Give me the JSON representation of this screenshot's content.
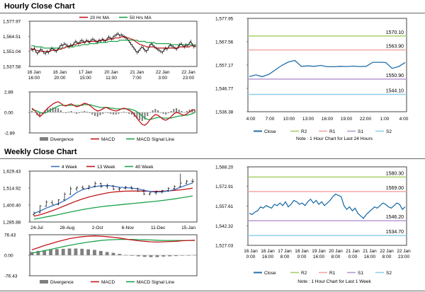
{
  "sections": {
    "hourly_title": "Hourly Close Chart",
    "weekly_title": "Weekly Close Chart"
  },
  "colors": {
    "close": "#1f6fa8",
    "ma20": "#c0171b",
    "ma50": "#1aa34a",
    "macd": "#c0171b",
    "macd_signal": "#1aa34a",
    "divergence": "#808080",
    "r2": "#a9cf6a",
    "r1": "#f2a6a6",
    "s1": "#b79ad2",
    "s2": "#8ed0ea",
    "ohlc": "#000000",
    "ma4w": "#3b6fc0",
    "ma13w": "#c0171b",
    "ma40w": "#1aa34a"
  },
  "chart_data": [
    {
      "id": "hourly-price-ma",
      "type": "line",
      "legend": [
        "20 Hr MA",
        "50 Hrs MA"
      ],
      "yticks": [
        "1,577.97",
        "1,564.51",
        "1,551.04",
        "1,537.58"
      ],
      "ylim": [
        1537.58,
        1577.97
      ],
      "xticks": [
        "16 Jan\n16:00",
        "16 Jan\n20:00",
        "17 Jan\n15:00",
        "20 Jan\n11:00",
        "21 Jan\n7:00",
        "22 Jan\n3:00",
        "22 Jan\n23:00"
      ],
      "close": [
        1553,
        1552,
        1554,
        1551,
        1549,
        1551,
        1553,
        1552,
        1550,
        1549,
        1551,
        1550,
        1552,
        1554,
        1553,
        1552,
        1551,
        1553,
        1555,
        1557,
        1556,
        1558,
        1557,
        1556,
        1555,
        1557,
        1556,
        1558,
        1560,
        1559,
        1558,
        1560,
        1561,
        1560,
        1559,
        1561,
        1560,
        1559,
        1561,
        1562,
        1561,
        1560,
        1559,
        1561,
        1560,
        1562,
        1561,
        1560,
        1562,
        1564,
        1563,
        1562,
        1564,
        1565,
        1566,
        1567,
        1565,
        1566,
        1565,
        1564,
        1563,
        1562,
        1560,
        1558,
        1556,
        1554,
        1552,
        1550,
        1551,
        1553,
        1555,
        1554,
        1552,
        1551,
        1553,
        1556,
        1558,
        1557,
        1555,
        1554,
        1553,
        1552,
        1551,
        1550,
        1552,
        1554,
        1553,
        1555,
        1557,
        1556,
        1555,
        1554,
        1553,
        1555,
        1557,
        1558,
        1556,
        1555,
        1557,
        1556,
        1558,
        1560,
        1557,
        1555,
        1556
      ],
      "ma20": [
        1554,
        1553,
        1553,
        1552,
        1552,
        1551,
        1551,
        1551,
        1551,
        1551,
        1551,
        1551,
        1551,
        1552,
        1552,
        1552,
        1552,
        1553,
        1553,
        1553,
        1554,
        1554,
        1555,
        1555,
        1556,
        1556,
        1556,
        1557,
        1557,
        1558,
        1558,
        1558,
        1559,
        1559,
        1559,
        1560,
        1560,
        1560,
        1560,
        1560,
        1560,
        1560,
        1560,
        1561,
        1561,
        1561,
        1561,
        1561,
        1561,
        1562,
        1562,
        1562,
        1562,
        1563,
        1563,
        1563,
        1563,
        1564,
        1564,
        1564,
        1564,
        1563,
        1563,
        1562,
        1562,
        1561,
        1560,
        1559,
        1558,
        1557,
        1557,
        1556,
        1556,
        1555,
        1555,
        1555,
        1555,
        1555,
        1555,
        1554,
        1554,
        1554,
        1554,
        1554,
        1554,
        1554,
        1554,
        1554,
        1554,
        1554,
        1554,
        1554,
        1554,
        1554,
        1555,
        1555,
        1555,
        1555,
        1555,
        1555,
        1555,
        1556,
        1556,
        1556,
        1556
      ],
      "ma50": [
        1556,
        1556,
        1556,
        1555,
        1555,
        1555,
        1555,
        1555,
        1554,
        1554,
        1554,
        1554,
        1554,
        1554,
        1554,
        1554,
        1554,
        1554,
        1554,
        1554,
        1554,
        1554,
        1555,
        1555,
        1555,
        1555,
        1555,
        1555,
        1556,
        1556,
        1556,
        1556,
        1557,
        1557,
        1557,
        1557,
        1557,
        1558,
        1558,
        1558,
        1558,
        1558,
        1558,
        1559,
        1559,
        1559,
        1559,
        1559,
        1559,
        1560,
        1560,
        1560,
        1560,
        1560,
        1560,
        1560,
        1561,
        1561,
        1561,
        1561,
        1561,
        1561,
        1561,
        1561,
        1561,
        1561,
        1561,
        1561,
        1560,
        1560,
        1560,
        1560,
        1560,
        1559,
        1559,
        1559,
        1559,
        1559,
        1559,
        1558,
        1558,
        1558,
        1558,
        1558,
        1558,
        1558,
        1558,
        1558,
        1557,
        1557,
        1557,
        1557,
        1557,
        1557,
        1557,
        1557,
        1557,
        1557,
        1557,
        1557,
        1557,
        1557,
        1557,
        1557,
        1557
      ]
    },
    {
      "id": "hourly-macd",
      "type": "line",
      "legend": [
        "Divergence",
        "MACD",
        "MACD Signal Line"
      ],
      "yticks": [
        "2.89",
        "0.00",
        "-2.89"
      ],
      "ylim": [
        -2.89,
        2.89
      ],
      "macd": [
        0.6,
        0.3,
        -0.2,
        -0.6,
        -0.3,
        0.2,
        0.6,
        0.9,
        1.2,
        1.4,
        1.5,
        1.3,
        1.0,
        0.9,
        1.1,
        1.2,
        1.0,
        0.8,
        0.9,
        1.1,
        1.3,
        1.2,
        1.0,
        0.7,
        0.4,
        0.2,
        0.3,
        0.5,
        0.7,
        0.6,
        0.4,
        0.3,
        0.2,
        0.3,
        0.5,
        0.6,
        0.5,
        0.3,
        0.1,
        -0.3,
        -0.8,
        -1.3,
        -1.7,
        -1.8,
        -1.5,
        -1.0,
        -0.6,
        -0.3,
        -0.4,
        -0.7,
        -1.0,
        -1.1,
        -0.9,
        -0.6,
        -0.2,
        0.0,
        -0.1,
        -0.3,
        -0.4,
        -0.2,
        0.1,
        0.3,
        0.4
      ],
      "signal": [
        0.4,
        0.3,
        0.2,
        0.0,
        -0.1,
        -0.1,
        0.1,
        0.3,
        0.5,
        0.7,
        0.9,
        1.0,
        1.0,
        1.0,
        1.0,
        1.0,
        1.0,
        1.0,
        1.0,
        1.0,
        1.1,
        1.1,
        1.1,
        1.0,
        0.9,
        0.8,
        0.7,
        0.7,
        0.7,
        0.7,
        0.6,
        0.6,
        0.5,
        0.5,
        0.5,
        0.5,
        0.5,
        0.5,
        0.4,
        0.3,
        0.1,
        -0.2,
        -0.5,
        -0.8,
        -1.0,
        -1.0,
        -0.9,
        -0.8,
        -0.7,
        -0.7,
        -0.8,
        -0.8,
        -0.8,
        -0.8,
        -0.7,
        -0.6,
        -0.5,
        -0.5,
        -0.4,
        -0.4,
        -0.3,
        -0.2,
        0.0
      ],
      "divergence": [
        0.2,
        0.0,
        -0.4,
        -0.6,
        -0.2,
        0.3,
        0.5,
        0.6,
        0.7,
        0.7,
        0.6,
        0.3,
        0.0,
        -0.1,
        0.1,
        0.2,
        0.0,
        -0.2,
        -0.1,
        0.1,
        0.2,
        0.1,
        -0.1,
        -0.3,
        -0.5,
        -0.6,
        -0.4,
        -0.2,
        0.0,
        -0.1,
        -0.2,
        -0.3,
        -0.3,
        -0.2,
        0.0,
        0.1,
        0.0,
        -0.2,
        -0.3,
        -0.6,
        -0.9,
        -1.1,
        -1.2,
        -1.0,
        -0.5,
        0.0,
        0.3,
        0.5,
        0.3,
        0.0,
        -0.2,
        -0.3,
        -0.1,
        0.2,
        0.5,
        0.6,
        0.4,
        0.2,
        0.0,
        0.2,
        0.4,
        0.5,
        0.4
      ]
    },
    {
      "id": "hourly-close-pivots",
      "type": "line",
      "yticks": [
        "1,577.95",
        "1,567.56",
        "1,557.17",
        "1,546.77",
        "1,536.38"
      ],
      "ylim": [
        1536.38,
        1577.95
      ],
      "xticks": [
        "4:00",
        "7:00",
        "10:00",
        "13:00",
        "16:00",
        "19:00",
        "22:00",
        "1:00",
        "4:00"
      ],
      "close": [
        1552.0,
        1552.8,
        1552.0,
        1553.0,
        1555.0,
        1557.0,
        1558.5,
        1559.2,
        1556.6,
        1556.8,
        1556.6,
        1557.0,
        1556.4,
        1556.4,
        1556.6,
        1556.5,
        1556.7,
        1556.5,
        1556.6,
        1558.4,
        1558.4,
        1558.3,
        1555.7,
        1556.5,
        1558.3
      ],
      "levels": [
        {
          "name": "R2",
          "value": 1570.1,
          "label": "1570.10"
        },
        {
          "name": "R1",
          "value": 1563.9,
          "label": "1563.90"
        },
        {
          "name": "S1",
          "value": 1550.9,
          "label": "1550.90"
        },
        {
          "name": "S2",
          "value": 1544.1,
          "label": "1544.10"
        }
      ],
      "legend": [
        "Close",
        "R2",
        "R1",
        "S1",
        "S2"
      ],
      "note": "Note : 1 Hour Chart for Last 24 Hours"
    },
    {
      "id": "weekly-price-ma",
      "type": "line",
      "legend": [
        "4 Week",
        "13 Week",
        "40 Week"
      ],
      "yticks": [
        "1,629.43",
        "1,514.92",
        "1,400.40",
        "1,285.88"
      ],
      "ylim": [
        1285.88,
        1629.43
      ],
      "xticks": [
        "24-Jul",
        "28-Aug",
        "2-Oct",
        "6-Nov",
        "11-Dec",
        "15-Jan"
      ],
      "ohlc": [
        [
          1335,
          1355,
          1325,
          1345
        ],
        [
          1348,
          1400,
          1345,
          1395
        ],
        [
          1392,
          1432,
          1388,
          1420
        ],
        [
          1418,
          1432,
          1402,
          1405
        ],
        [
          1405,
          1440,
          1398,
          1435
        ],
        [
          1435,
          1485,
          1430,
          1475
        ],
        [
          1475,
          1525,
          1470,
          1510
        ],
        [
          1510,
          1525,
          1495,
          1520
        ],
        [
          1520,
          1532,
          1505,
          1512
        ],
        [
          1512,
          1535,
          1505,
          1528
        ],
        [
          1528,
          1560,
          1520,
          1545
        ],
        [
          1545,
          1552,
          1515,
          1525
        ],
        [
          1525,
          1545,
          1510,
          1530
        ],
        [
          1530,
          1535,
          1500,
          1508
        ],
        [
          1508,
          1522,
          1495,
          1512
        ],
        [
          1512,
          1530,
          1505,
          1520
        ],
        [
          1520,
          1528,
          1505,
          1510
        ],
        [
          1510,
          1518,
          1490,
          1495
        ],
        [
          1495,
          1508,
          1468,
          1475
        ],
        [
          1475,
          1490,
          1465,
          1482
        ],
        [
          1482,
          1498,
          1470,
          1490
        ],
        [
          1490,
          1503,
          1478,
          1498
        ],
        [
          1498,
          1520,
          1490,
          1512
        ],
        [
          1512,
          1535,
          1505,
          1525
        ],
        [
          1525,
          1612,
          1520,
          1548
        ],
        [
          1548,
          1570,
          1540,
          1562
        ],
        [
          1562,
          1578,
          1548,
          1560
        ]
      ],
      "ma4": [
        1345,
        1360,
        1380,
        1395,
        1410,
        1430,
        1455,
        1485,
        1505,
        1515,
        1525,
        1530,
        1532,
        1528,
        1520,
        1518,
        1515,
        1510,
        1500,
        1492,
        1488,
        1490,
        1495,
        1505,
        1520,
        1535,
        1550
      ],
      "ma13": [
        1325,
        1335,
        1348,
        1362,
        1378,
        1395,
        1412,
        1428,
        1442,
        1455,
        1465,
        1474,
        1482,
        1488,
        1492,
        1494,
        1495,
        1495,
        1494,
        1493,
        1493,
        1494,
        1496,
        1499,
        1503,
        1508,
        1514
      ],
      "ma40": [
        1305,
        1312,
        1320,
        1328,
        1336,
        1345,
        1354,
        1362,
        1370,
        1377,
        1383,
        1389,
        1394,
        1398,
        1402,
        1406,
        1410,
        1414,
        1418,
        1422,
        1426,
        1431,
        1436,
        1442,
        1448,
        1455,
        1462
      ]
    },
    {
      "id": "weekly-macd",
      "type": "line",
      "legend": [
        "Divergence",
        "MACD",
        "MACD Signal Line"
      ],
      "yticks": [
        "76.43",
        "0.00",
        "-76.43"
      ],
      "ylim": [
        -76.43,
        76.43
      ],
      "macd": [
        20,
        28,
        36,
        43,
        50,
        56,
        62,
        66,
        69,
        71,
        72,
        71,
        69,
        67,
        64,
        60,
        57,
        54,
        52,
        50,
        49,
        50,
        51,
        52,
        54,
        55,
        56
      ],
      "signal": [
        8,
        12,
        17,
        22,
        27,
        32,
        37,
        41,
        45,
        49,
        52,
        55,
        57,
        58,
        59,
        59,
        59,
        58,
        58,
        57,
        56,
        55,
        55,
        55,
        55,
        55,
        55
      ],
      "divergence": [
        12,
        16,
        19,
        21,
        23,
        24,
        25,
        25,
        24,
        22,
        20,
        16,
        12,
        9,
        5,
        1,
        -2,
        -4,
        -6,
        -7,
        -7,
        -5,
        -4,
        -3,
        -1,
        0,
        1
      ]
    },
    {
      "id": "weekly-close-pivots",
      "type": "line",
      "yticks": [
        "1,588.20",
        "1,572.91",
        "1,557.61",
        "1,542.32",
        "1,527.03"
      ],
      "ylim": [
        1527.03,
        1588.2
      ],
      "xticks": [
        "16 Jan\n0:00",
        "16 Jan\n16:00",
        "17 Jan\n8:00",
        "18 Jan\n0:00",
        "19 Jan\n16:00",
        "20 Jan\n8:00",
        "21 Jan\n0:00",
        "21 Jan\n16:00",
        "22 Jan\n8:00",
        "22 Jan\n23:00"
      ],
      "close": [
        1552,
        1551,
        1553,
        1554,
        1557,
        1556,
        1558,
        1557,
        1556,
        1559,
        1558,
        1560,
        1558,
        1561,
        1557,
        1559,
        1562,
        1561,
        1559,
        1560,
        1558,
        1561,
        1563,
        1560,
        1562,
        1559,
        1561,
        1558,
        1560,
        1562,
        1565,
        1567,
        1566,
        1565,
        1558,
        1555,
        1557,
        1554,
        1556,
        1552,
        1550,
        1548,
        1551,
        1553,
        1555,
        1557,
        1556,
        1558,
        1560,
        1559,
        1557,
        1556,
        1558,
        1560,
        1559,
        1555,
        1557
      ],
      "levels": [
        {
          "name": "R2",
          "value": 1580.3,
          "label": "1580.30"
        },
        {
          "name": "R1",
          "value": 1569.0,
          "label": "1569.00"
        },
        {
          "name": "S1",
          "value": 1546.2,
          "label": "1546.20"
        },
        {
          "name": "S2",
          "value": 1534.7,
          "label": "1534.70"
        }
      ],
      "legend": [
        "Close",
        "R2",
        "R1",
        "S1",
        "S2"
      ],
      "note": "Note : 1 Hour Chart for Last 1 Week"
    }
  ]
}
